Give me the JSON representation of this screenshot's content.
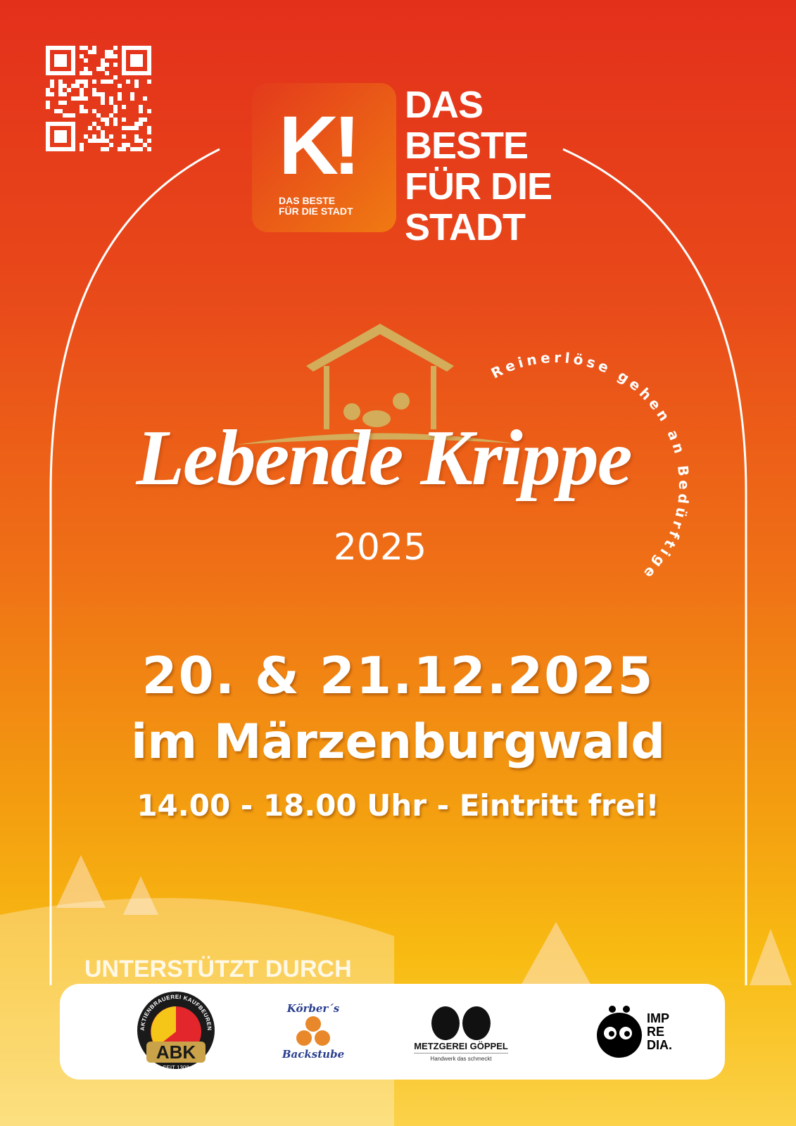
{
  "logo": {
    "letters": "K!",
    "small_line1": "DAS BESTE",
    "small_line2": "FÜR DIE STADT"
  },
  "slogan": [
    "DAS",
    "BESTE",
    "FÜR DIE",
    "STADT"
  ],
  "event": {
    "title": "Lebende Krippe",
    "year": "2025",
    "arc_text": "Reinerlöse gehen an Bedürftige",
    "date": "20. & 21.12.2025",
    "location": "im Märzenburgwald",
    "time": "14.00 - 18.00 Uhr - Eintritt frei!"
  },
  "sponsors": {
    "heading": "UNTERSTÜTZT DURCH",
    "items": [
      {
        "name": "ABK",
        "ring": "AKTIENBRAUEREI KAUFBEUREN",
        "since": "SEIT 1308"
      },
      {
        "name": "Körber's Backstube",
        "top": "Körber´s",
        "bottom": "Backstube"
      },
      {
        "name": "METZGEREI GÖPPEL",
        "tagline": "Handwerk das schmeckt"
      },
      {
        "name": "IMPREDIA",
        "lines": [
          "IMP",
          "RE",
          "DIA."
        ]
      }
    ]
  },
  "colors": {
    "top": "#e3301b",
    "middle": "#ef6f16",
    "bottom": "#f8bb12",
    "gold": "#c9a24a"
  }
}
